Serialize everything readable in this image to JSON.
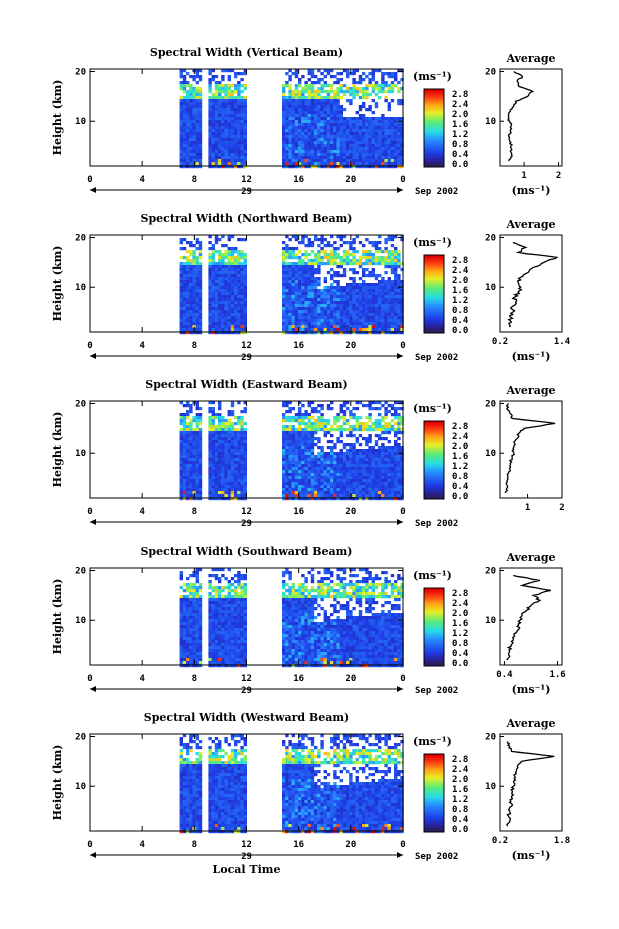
{
  "chart_data": [
    {
      "type": "heatmap",
      "title": "Spectral Width (Vertical Beam)",
      "ylabel": "Height (km)",
      "xticks": [
        "0",
        "4",
        "8",
        "12",
        "16",
        "20",
        "0"
      ],
      "yticks": [
        "20",
        "10"
      ],
      "day_label": "29",
      "date_label": "Sep 2002",
      "xlim": [
        0,
        24
      ],
      "ylim": [
        1,
        20.5
      ],
      "gaps": [
        [
          8.4,
          8.9
        ],
        [
          11.8,
          14.6
        ]
      ],
      "data_start": 6.8,
      "colorbar": {
        "unit": "(ms⁻¹)",
        "ticks": [
          "2.8",
          "2.4",
          "2.0",
          "1.6",
          "1.2",
          "0.8",
          "0.4",
          "0.0"
        ]
      },
      "profile": {
        "title": "Average",
        "ytick_labels": [
          "20",
          "10"
        ],
        "xtick_labels": [
          "1",
          "2"
        ],
        "xtick_values": [
          1,
          2
        ],
        "xlim": [
          0.3,
          2.1
        ],
        "xlabel": "(ms⁻¹)",
        "heights": [
          2,
          3,
          4,
          5,
          6,
          7,
          8,
          9,
          10,
          11,
          12,
          13,
          14,
          15,
          16,
          17,
          18,
          19,
          20
        ],
        "values": [
          0.55,
          0.65,
          0.6,
          0.62,
          0.58,
          0.55,
          0.6,
          0.62,
          0.58,
          0.55,
          0.6,
          0.7,
          0.75,
          1.1,
          1.25,
          0.85,
          0.8,
          0.95,
          0.7
        ]
      }
    },
    {
      "type": "heatmap",
      "title": "Spectral Width (Northward Beam)",
      "ylabel": "Height (km)",
      "xticks": [
        "0",
        "4",
        "8",
        "12",
        "16",
        "20",
        "0"
      ],
      "yticks": [
        "20",
        "10"
      ],
      "day_label": "29",
      "date_label": "Sep 2002",
      "xlim": [
        0,
        24
      ],
      "ylim": [
        1,
        20.5
      ],
      "gaps": [
        [
          8.4,
          8.9
        ],
        [
          11.8,
          14.6
        ]
      ],
      "data_start": 6.8,
      "colorbar": {
        "unit": "(ms⁻¹)",
        "ticks": [
          "2.8",
          "2.4",
          "2.0",
          "1.6",
          "1.2",
          "0.8",
          "0.4",
          "0.0"
        ]
      },
      "profile": {
        "title": "Average",
        "ytick_labels": [
          "20",
          "10"
        ],
        "xtick_labels": [
          "0.2",
          "1.4"
        ],
        "xtick_values": [
          0.2,
          1.4
        ],
        "xlim": [
          0.2,
          1.4
        ],
        "xlabel": "(ms⁻¹)",
        "heights": [
          2,
          3,
          4,
          5,
          6,
          7,
          8,
          9,
          10,
          11,
          12,
          13,
          14,
          15,
          16,
          17,
          18,
          19
        ],
        "values": [
          0.38,
          0.42,
          0.4,
          0.45,
          0.42,
          0.5,
          0.48,
          0.55,
          0.6,
          0.55,
          0.6,
          0.75,
          0.85,
          1.05,
          1.3,
          0.55,
          0.7,
          0.45
        ]
      }
    },
    {
      "type": "heatmap",
      "title": "Spectral Width (Eastward Beam)",
      "ylabel": "Height (km)",
      "xticks": [
        "0",
        "4",
        "8",
        "12",
        "16",
        "20",
        "0"
      ],
      "yticks": [
        "20",
        "10"
      ],
      "day_label": "29",
      "date_label": "Sep 2002",
      "xlim": [
        0,
        24
      ],
      "ylim": [
        1,
        20.5
      ],
      "gaps": [
        [
          8.4,
          8.9
        ],
        [
          11.8,
          14.6
        ]
      ],
      "data_start": 6.8,
      "colorbar": {
        "unit": "(ms⁻¹)",
        "ticks": [
          "2.8",
          "2.4",
          "2.0",
          "1.6",
          "1.2",
          "0.8",
          "0.4",
          "0.0"
        ]
      },
      "profile": {
        "title": "Average",
        "ytick_labels": [
          "20",
          "10"
        ],
        "xtick_labels": [
          "1",
          "2"
        ],
        "xtick_values": [
          1,
          2
        ],
        "xlim": [
          0.2,
          2.0
        ],
        "xlabel": "",
        "heights": [
          2,
          3,
          4,
          5,
          6,
          7,
          8,
          9,
          10,
          11,
          12,
          13,
          14,
          15,
          16,
          17,
          18,
          19,
          20
        ],
        "values": [
          0.35,
          0.4,
          0.38,
          0.42,
          0.45,
          0.48,
          0.5,
          0.55,
          0.6,
          0.58,
          0.62,
          0.7,
          0.75,
          0.9,
          1.8,
          0.55,
          0.5,
          0.4,
          0.45
        ]
      }
    },
    {
      "type": "heatmap",
      "title": "Spectral Width (Southward Beam)",
      "ylabel": "Height (km)",
      "xticks": [
        "0",
        "4",
        "8",
        "12",
        "16",
        "20",
        "0"
      ],
      "yticks": [
        "20",
        "10"
      ],
      "day_label": "29",
      "date_label": "Sep 2002",
      "xlim": [
        0,
        24
      ],
      "ylim": [
        1,
        20.5
      ],
      "gaps": [
        [
          8.4,
          8.9
        ],
        [
          11.8,
          14.6
        ]
      ],
      "data_start": 6.8,
      "colorbar": {
        "unit": "(ms⁻¹)",
        "ticks": [
          "2.8",
          "2.4",
          "2.0",
          "1.6",
          "1.2",
          "0.8",
          "0.4",
          "0.0"
        ]
      },
      "profile": {
        "title": "Average",
        "ytick_labels": [
          "20",
          "10"
        ],
        "xtick_labels": [
          "0.4",
          "1.6"
        ],
        "xtick_values": [
          0.4,
          1.6
        ],
        "xlim": [
          0.3,
          1.7
        ],
        "xlabel": "(ms⁻¹)",
        "heights": [
          2,
          3,
          4,
          5,
          6,
          7,
          8,
          9,
          10,
          11,
          12,
          13,
          14,
          15,
          16,
          17,
          18,
          19
        ],
        "values": [
          0.45,
          0.5,
          0.5,
          0.55,
          0.6,
          0.62,
          0.7,
          0.72,
          0.75,
          0.8,
          0.9,
          1.0,
          1.2,
          1.05,
          1.45,
          0.8,
          1.2,
          0.6
        ]
      }
    },
    {
      "type": "heatmap",
      "title": "Spectral Width (Westward Beam)",
      "ylabel": "Height (km)",
      "xticks": [
        "0",
        "4",
        "8",
        "12",
        "16",
        "20",
        "0"
      ],
      "yticks": [
        "20",
        "10"
      ],
      "day_label": "29",
      "date_label": "Sep 2002",
      "xlabel": "Local Time",
      "xlim": [
        0,
        24
      ],
      "ylim": [
        1,
        20.5
      ],
      "gaps": [
        [
          8.4,
          8.9
        ],
        [
          11.8,
          14.6
        ]
      ],
      "data_start": 6.8,
      "colorbar": {
        "unit": "(ms⁻¹)",
        "ticks": [
          "2.8",
          "2.4",
          "2.0",
          "1.6",
          "1.2",
          "0.8",
          "0.4",
          "0.0"
        ]
      },
      "profile": {
        "title": "Average",
        "ytick_labels": [
          "20",
          "10"
        ],
        "xtick_labels": [
          "0.2",
          "1.8"
        ],
        "xtick_values": [
          0.2,
          1.8
        ],
        "xlim": [
          0.2,
          1.8
        ],
        "xlabel": "(ms⁻¹)",
        "heights": [
          2,
          3,
          4,
          5,
          6,
          7,
          8,
          9,
          10,
          11,
          12,
          13,
          14,
          15,
          16,
          17,
          18,
          19
        ],
        "values": [
          0.4,
          0.45,
          0.42,
          0.45,
          0.5,
          0.48,
          0.5,
          0.52,
          0.55,
          0.55,
          0.58,
          0.62,
          0.65,
          0.75,
          1.6,
          0.5,
          0.45,
          0.4
        ]
      }
    }
  ]
}
